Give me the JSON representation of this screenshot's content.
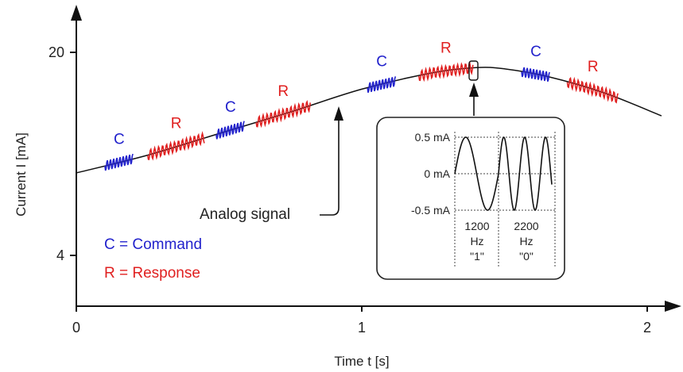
{
  "chart_data": {
    "type": "line",
    "title": "",
    "xlabel": "Time t [s]",
    "ylabel": "Current I [mA]",
    "xlim": [
      0,
      2.1
    ],
    "ylim": [
      0,
      21
    ],
    "x_ticks": [
      {
        "value": 0,
        "label": "0"
      },
      {
        "value": 1,
        "label": "1"
      },
      {
        "value": 2,
        "label": "2"
      }
    ],
    "y_ticks": [
      {
        "value": 4,
        "label": "4"
      },
      {
        "value": 20,
        "label": "20"
      }
    ],
    "grid": false,
    "series": [
      {
        "x": [
          0,
          0.25,
          0.5,
          0.75,
          1.0,
          1.25,
          1.4,
          1.5,
          1.65,
          1.85,
          2.05
        ],
        "y": [
          10.5,
          11.9,
          13.6,
          15.3,
          17.1,
          18.4,
          18.8,
          18.7,
          18.1,
          16.8,
          15.0
        ]
      }
    ],
    "bursts": [
      {
        "label": "C",
        "color": "#2222cc",
        "x_start": 0.1,
        "x_end": 0.2
      },
      {
        "label": "R",
        "color": "#e02020",
        "x_start": 0.25,
        "x_end": 0.45
      },
      {
        "label": "C",
        "color": "#2222cc",
        "x_start": 0.49,
        "x_end": 0.59
      },
      {
        "label": "R",
        "color": "#e02020",
        "x_start": 0.63,
        "x_end": 0.82
      },
      {
        "label": "C",
        "color": "#2222cc",
        "x_start": 1.02,
        "x_end": 1.12
      },
      {
        "label": "R",
        "color": "#e02020",
        "x_start": 1.2,
        "x_end": 1.39
      },
      {
        "label": "C",
        "color": "#2222cc",
        "x_start": 1.56,
        "x_end": 1.66
      },
      {
        "label": "R",
        "color": "#e02020",
        "x_start": 1.72,
        "x_end": 1.9
      }
    ],
    "annotation": "Analog signal",
    "legend": {
      "position": "bottom-left",
      "entries": [
        {
          "text": "C = Command",
          "color": "#2222cc"
        },
        {
          "text": "R = Response",
          "color": "#e02020"
        }
      ]
    },
    "inset": {
      "y_labels": [
        "0.5 mA",
        "0 mA",
        "-0.5 mA"
      ],
      "segments": [
        {
          "freq": "1200",
          "unit": "Hz",
          "bit": "\"1\""
        },
        {
          "freq": "2200",
          "unit": "Hz",
          "bit": "\"0\""
        }
      ]
    }
  }
}
